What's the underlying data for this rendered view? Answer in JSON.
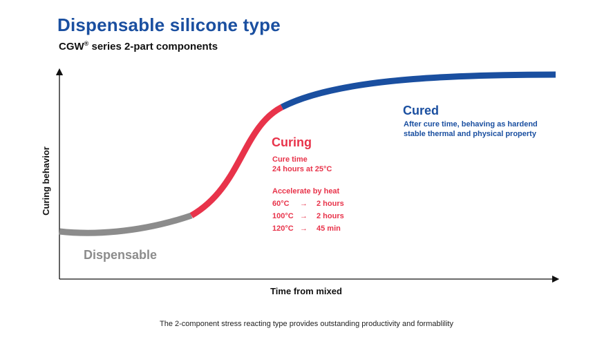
{
  "header": {
    "title": "Dispensable silicone type",
    "subtitle_brand": "CGW",
    "subtitle_mark": "®",
    "subtitle_rest": " series 2-part components"
  },
  "footer": {
    "caption": "The 2-component stress reacting type provides outstanding productivity and formablility"
  },
  "colors": {
    "dispensable": "#8c8c8c",
    "curing": "#e8334a",
    "cured": "#1a4fa0",
    "title": "#1a4fa0",
    "axis": "#111111"
  },
  "chart_data": {
    "type": "line",
    "xlabel": "Time from mixed",
    "ylabel": "Curing behavior",
    "grid": false,
    "axis_ticks": false,
    "phases": [
      {
        "name": "Dispensable",
        "color": "#8c8c8c",
        "notes": []
      },
      {
        "name": "Curing",
        "color": "#e8334a",
        "notes": [
          "Cure time",
          "24 hours at 25°C",
          "",
          "Accelerate by heat"
        ],
        "heat_rows": [
          {
            "temp": "60°C",
            "arrow": "→",
            "time": "2 hours"
          },
          {
            "temp": "100°C",
            "arrow": "→",
            "time": "2 hours"
          },
          {
            "temp": "120°C",
            "arrow": "→",
            "time": "45 min"
          }
        ]
      },
      {
        "name": "Cured",
        "color": "#1a4fa0",
        "notes": [
          "After cure time, behaving as hardend",
          "stable thermal and physical property"
        ]
      }
    ]
  }
}
